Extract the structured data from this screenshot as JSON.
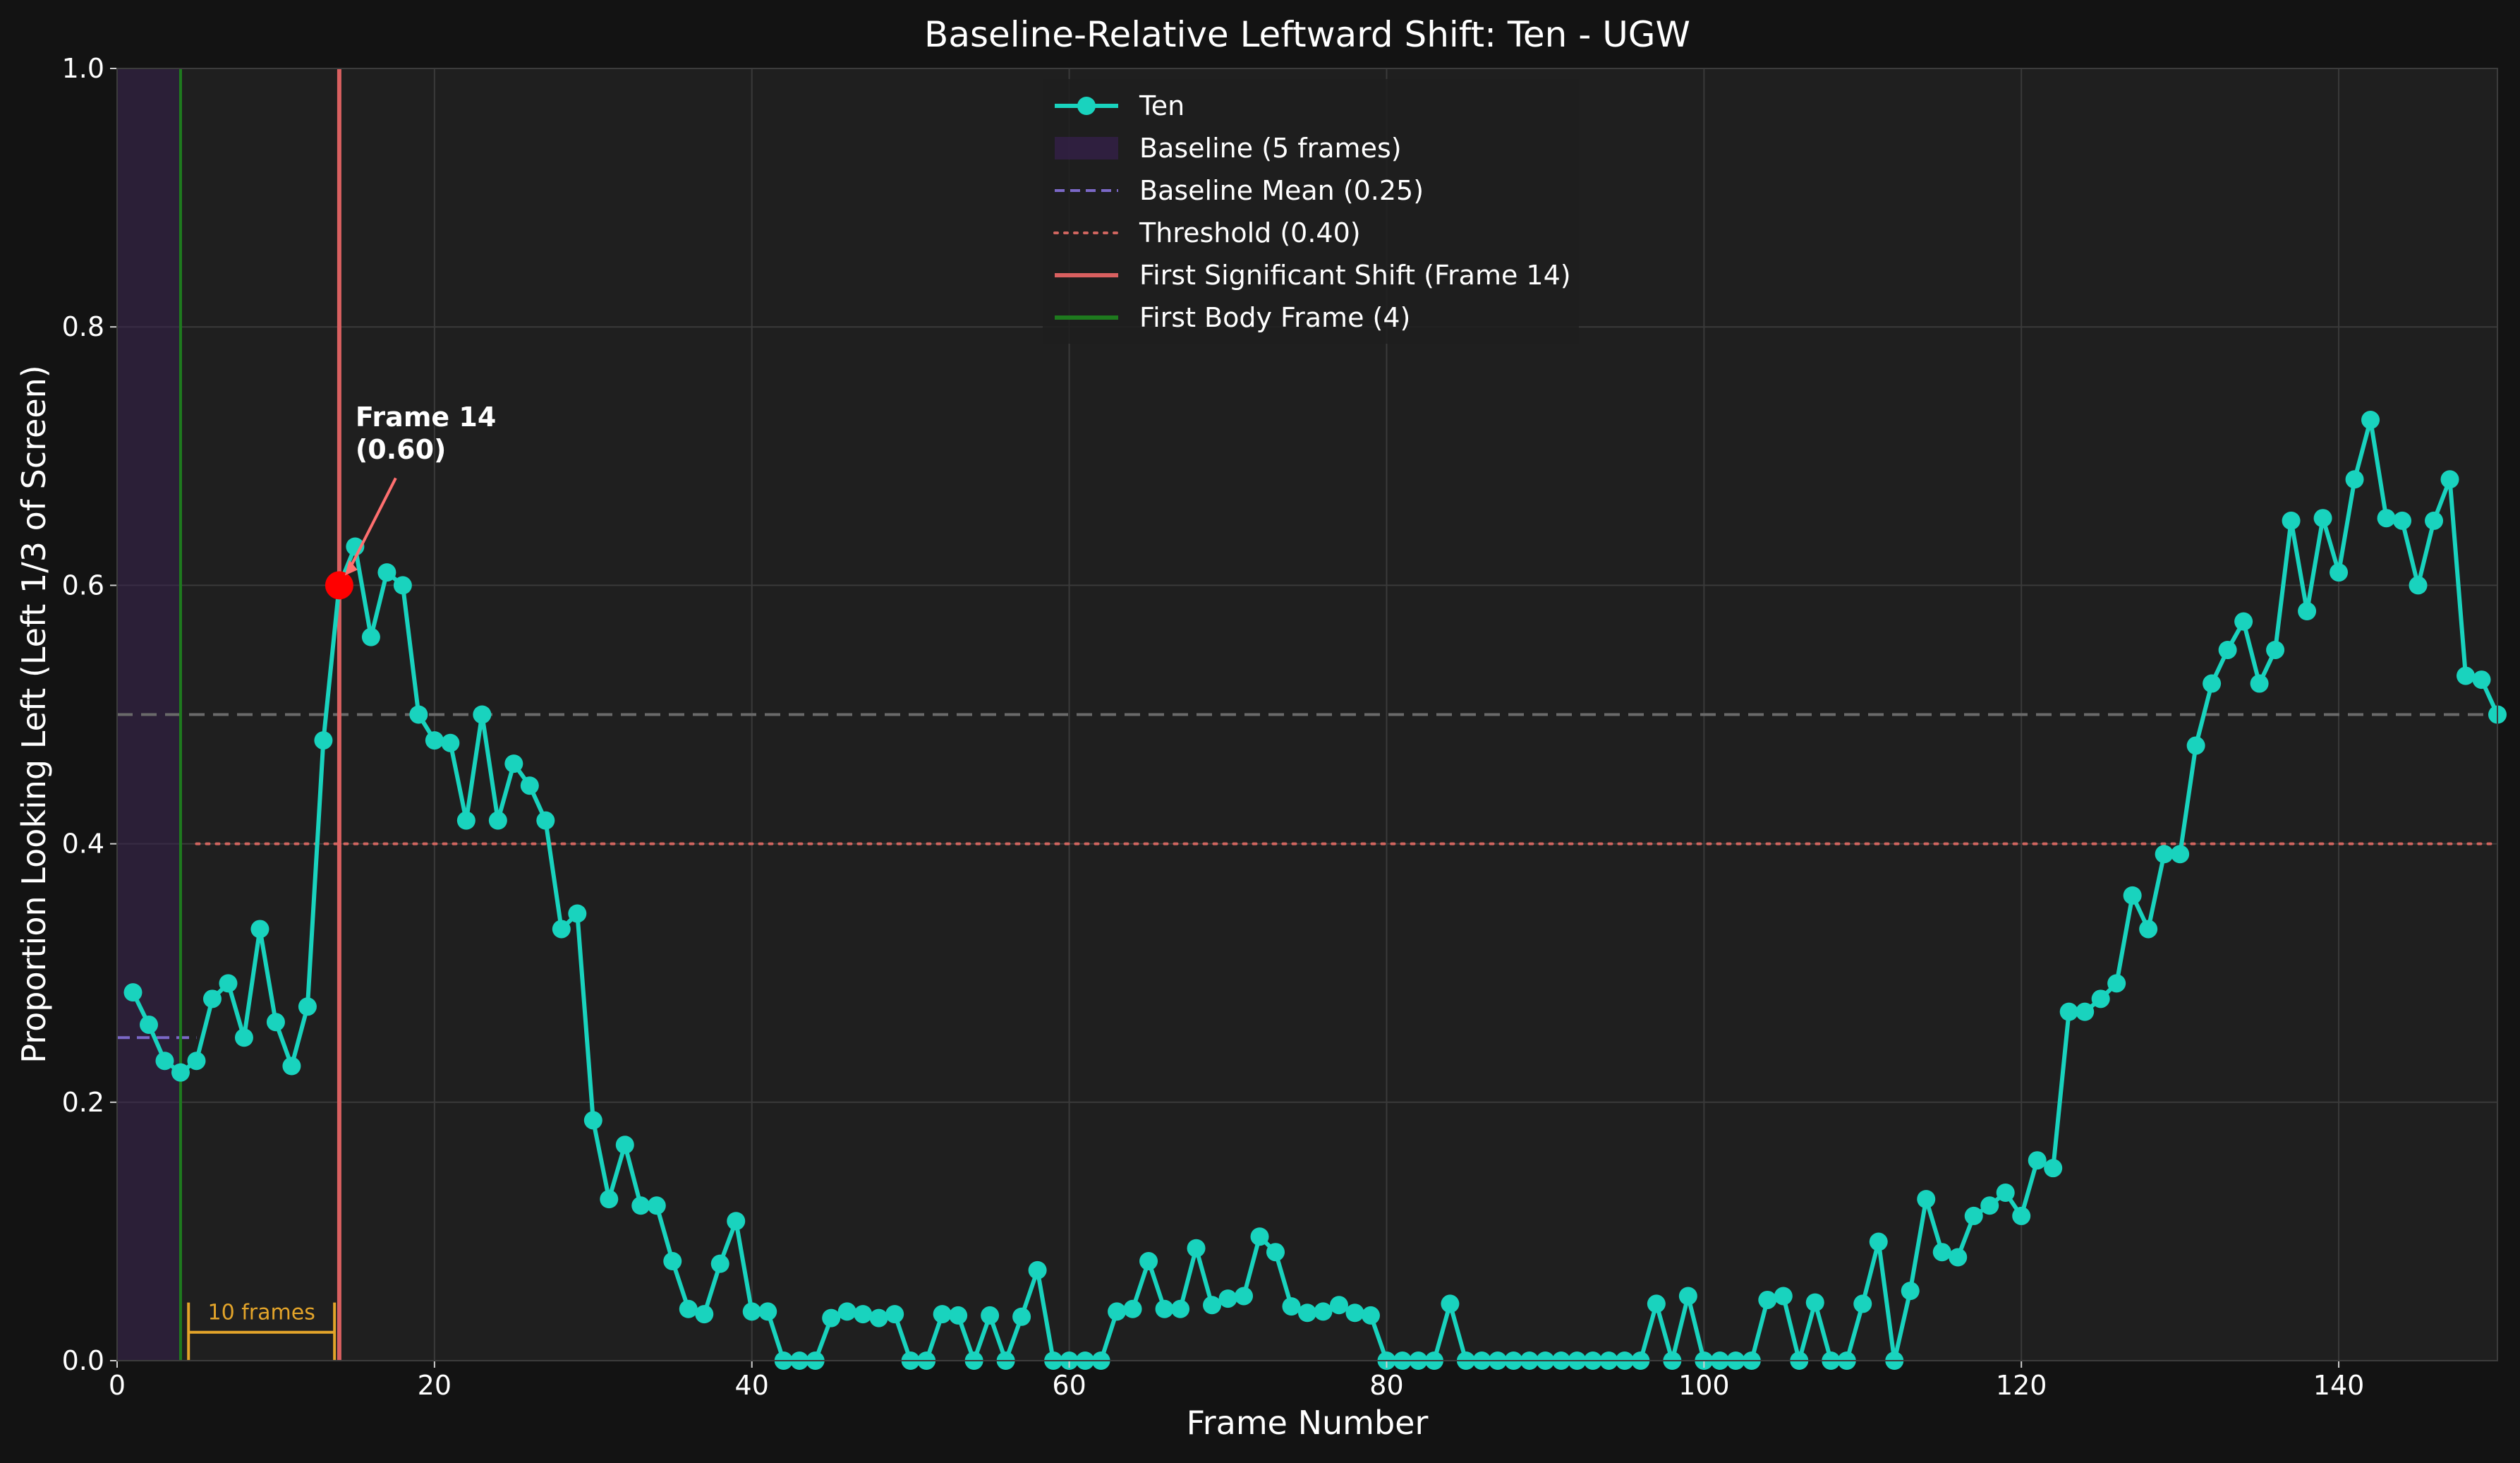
{
  "chart_data": {
    "type": "line",
    "title": "Baseline-Relative Leftward Shift: Ten - UGW",
    "xlabel": "Frame Number",
    "ylabel": "Proportion Looking Left (Left 1/3 of Screen)",
    "xlim": [
      0,
      150
    ],
    "ylim": [
      0,
      1.0
    ],
    "xticks": [
      "0",
      "20",
      "40",
      "60",
      "80",
      "100",
      "120",
      "140"
    ],
    "yticks": [
      "0.0",
      "0.2",
      "0.4",
      "0.6",
      "0.8",
      "1.0"
    ],
    "grid": true,
    "legend_position": "top-center",
    "legend": [
      {
        "label": "Ten",
        "style": "line-marker",
        "color": "#19d3be"
      },
      {
        "label": "Baseline (5 frames)",
        "style": "patch",
        "color": "#2d1e3c"
      },
      {
        "label": "Baseline Mean (0.25)",
        "style": "dashed",
        "color": "#7b68c7"
      },
      {
        "label": "Threshold (0.40)",
        "style": "dotted",
        "color": "#d0655f"
      },
      {
        "label": "First Significant Shift (Frame 14)",
        "style": "solid",
        "color": "#d96060"
      },
      {
        "label": "First Body Frame (4)",
        "style": "solid",
        "color": "#1e7a1e"
      }
    ],
    "series": [
      {
        "name": "Ten",
        "color": "#19d3be",
        "x": [
          1,
          2,
          3,
          4,
          5,
          6,
          7,
          8,
          9,
          10,
          11,
          12,
          13,
          14,
          15,
          16,
          17,
          18,
          19,
          20,
          21,
          22,
          23,
          24,
          25,
          26,
          27,
          28,
          29,
          30,
          31,
          32,
          33,
          34,
          35,
          36,
          37,
          38,
          39,
          40,
          41,
          42,
          43,
          44,
          45,
          46,
          47,
          48,
          49,
          50,
          51,
          52,
          53,
          54,
          55,
          56,
          57,
          58,
          59,
          60,
          61,
          62,
          63,
          64,
          65,
          66,
          67,
          68,
          69,
          70,
          71,
          72,
          73,
          74,
          75,
          76,
          77,
          78,
          79,
          80,
          81,
          82,
          83,
          84,
          85,
          86,
          87,
          88,
          89,
          90,
          91,
          92,
          93,
          94,
          95,
          96,
          97,
          98,
          99,
          100,
          101,
          102,
          103,
          104,
          105,
          106,
          107,
          108,
          109,
          110,
          111,
          112,
          113,
          114,
          115,
          116,
          117,
          118,
          119,
          120,
          121,
          122,
          123,
          124,
          125,
          126,
          127,
          128,
          129,
          130,
          131,
          132,
          133,
          134,
          135,
          136,
          137,
          138,
          139,
          140,
          141,
          142,
          143,
          144,
          145,
          146,
          147,
          148,
          149,
          150
        ],
        "y": [
          0.285,
          0.26,
          0.232,
          0.223,
          0.232,
          0.28,
          0.292,
          0.25,
          0.334,
          0.262,
          0.228,
          0.274,
          0.48,
          0.6,
          0.63,
          0.56,
          0.61,
          0.6,
          0.5,
          0.48,
          0.478,
          0.418,
          0.5,
          0.418,
          0.462,
          0.445,
          0.418,
          0.334,
          0.346,
          0.186,
          0.125,
          0.167,
          0.12,
          0.12,
          0.077,
          0.04,
          0.036,
          0.075,
          0.108,
          0.038,
          0.038,
          0.0,
          0.0,
          0.0,
          0.033,
          0.038,
          0.036,
          0.033,
          0.036,
          0.0,
          0.0,
          0.036,
          0.035,
          0.0,
          0.035,
          0.0,
          0.034,
          0.07,
          0.0,
          0.0,
          0.0,
          0.0,
          0.038,
          0.04,
          0.077,
          0.04,
          0.04,
          0.087,
          0.043,
          0.048,
          0.05,
          0.096,
          0.084,
          0.042,
          0.037,
          0.038,
          0.043,
          0.037,
          0.035,
          0.0,
          0.0,
          0.0,
          0.0,
          0.044,
          0.0,
          0.0,
          0.0,
          0.0,
          0.0,
          0.0,
          0.0,
          0.0,
          0.0,
          0.0,
          0.0,
          0.0,
          0.044,
          0.0,
          0.05,
          0.0,
          0.0,
          0.0,
          0.0,
          0.047,
          0.05,
          0.0,
          0.045,
          0.0,
          0.0,
          0.044,
          0.092,
          0.0,
          0.054,
          0.125,
          0.084,
          0.08,
          0.112,
          0.12,
          0.13,
          0.112,
          0.155,
          0.149,
          0.27,
          0.27,
          0.28,
          0.292,
          0.36,
          0.334,
          0.392,
          0.392,
          0.476,
          0.524,
          0.55,
          0.572,
          0.524,
          0.55,
          0.65,
          0.58,
          0.652,
          0.61,
          0.682,
          0.728,
          0.652,
          0.65,
          0.6,
          0.65,
          0.682,
          0.53,
          0.527,
          0.5
        ]
      }
    ],
    "baseline_region": {
      "x_start": 0,
      "x_end": 4
    },
    "baseline_mean": {
      "value": 0.25,
      "x_start": 0,
      "x_end": 5
    },
    "threshold": {
      "value": 0.4,
      "x_start": 5,
      "x_end": 150
    },
    "reference_line": {
      "value": 0.5
    },
    "first_significant_shift": {
      "frame": 14,
      "value": 0.6
    },
    "first_body_frame": {
      "frame": 4
    },
    "annotation": {
      "line1": "Frame 14",
      "line2": "(0.60)"
    },
    "bracket": {
      "label": "10 frames",
      "x_start": 4.5,
      "x_end": 13.7
    }
  }
}
